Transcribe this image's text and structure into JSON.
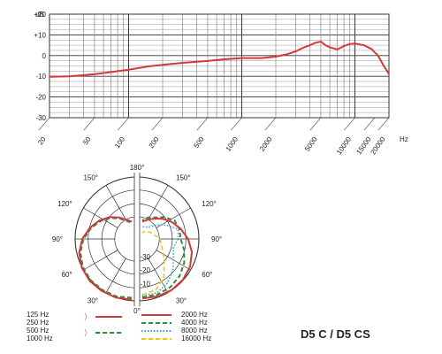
{
  "chart_data": [
    {
      "type": "line",
      "ylabel": "dB",
      "y_tick_labels": [
        "+20",
        "+10",
        "0",
        "-10",
        "-20",
        "-30"
      ],
      "ylim": [
        -30,
        20
      ],
      "x_unit": "Hz",
      "x_scale": "log",
      "xlim": [
        20,
        20000
      ],
      "x_tick_labels": [
        "20",
        "50",
        "100",
        "200",
        "500",
        "1000",
        "2000",
        "5000",
        "10000",
        "15000",
        "20000"
      ],
      "x_tick_values": [
        20,
        50,
        100,
        200,
        500,
        1000,
        2000,
        5000,
        10000,
        15000,
        20000
      ],
      "grid": true,
      "series": [
        {
          "color": "#d03a3a",
          "x": [
            20,
            30,
            50,
            80,
            100,
            150,
            200,
            300,
            500,
            700,
            1000,
            1500,
            2000,
            2500,
            3000,
            3500,
            4000,
            4500,
            5000,
            5500,
            6000,
            7000,
            8000,
            9000,
            10000,
            12000,
            14000,
            15000,
            16000,
            18000,
            20000
          ],
          "y": [
            -10.2,
            -10.0,
            -9.0,
            -7.5,
            -6.8,
            -5.2,
            -4.5,
            -3.5,
            -2.6,
            -1.8,
            -1.2,
            -1.2,
            -0.5,
            0.6,
            2.0,
            3.8,
            5.0,
            6.2,
            6.8,
            5.0,
            4.0,
            3.0,
            4.6,
            5.6,
            5.8,
            5.0,
            3.2,
            1.5,
            0.0,
            -5.0,
            -8.8
          ]
        }
      ]
    },
    {
      "type": "polar",
      "angle_labels": [
        "180°",
        "150°",
        "120°",
        "90°",
        "60°",
        "30°",
        "0°"
      ],
      "radial_labels": [
        "-10",
        "-20",
        "-30"
      ],
      "legend_left": [
        {
          "labels": [
            "125 Hz",
            "250 Hz"
          ],
          "color": "#d03a3a",
          "style": "solid"
        },
        {
          "labels": [
            "500 Hz",
            "1000 Hz"
          ],
          "color": "#2e8b3c",
          "style": "dashed"
        }
      ],
      "legend_right": [
        {
          "label": "2000 Hz",
          "color": "#d03a3a",
          "style": "solid"
        },
        {
          "label": "4000 Hz",
          "color": "#2e8b3c",
          "style": "dashed"
        },
        {
          "label": "8000 Hz",
          "color": "#2ba8c6",
          "style": "dotted"
        },
        {
          "label": "16000 Hz",
          "color": "#f2c418",
          "style": "dashed"
        }
      ]
    }
  ],
  "model_label": "D5 C / D5 CS"
}
